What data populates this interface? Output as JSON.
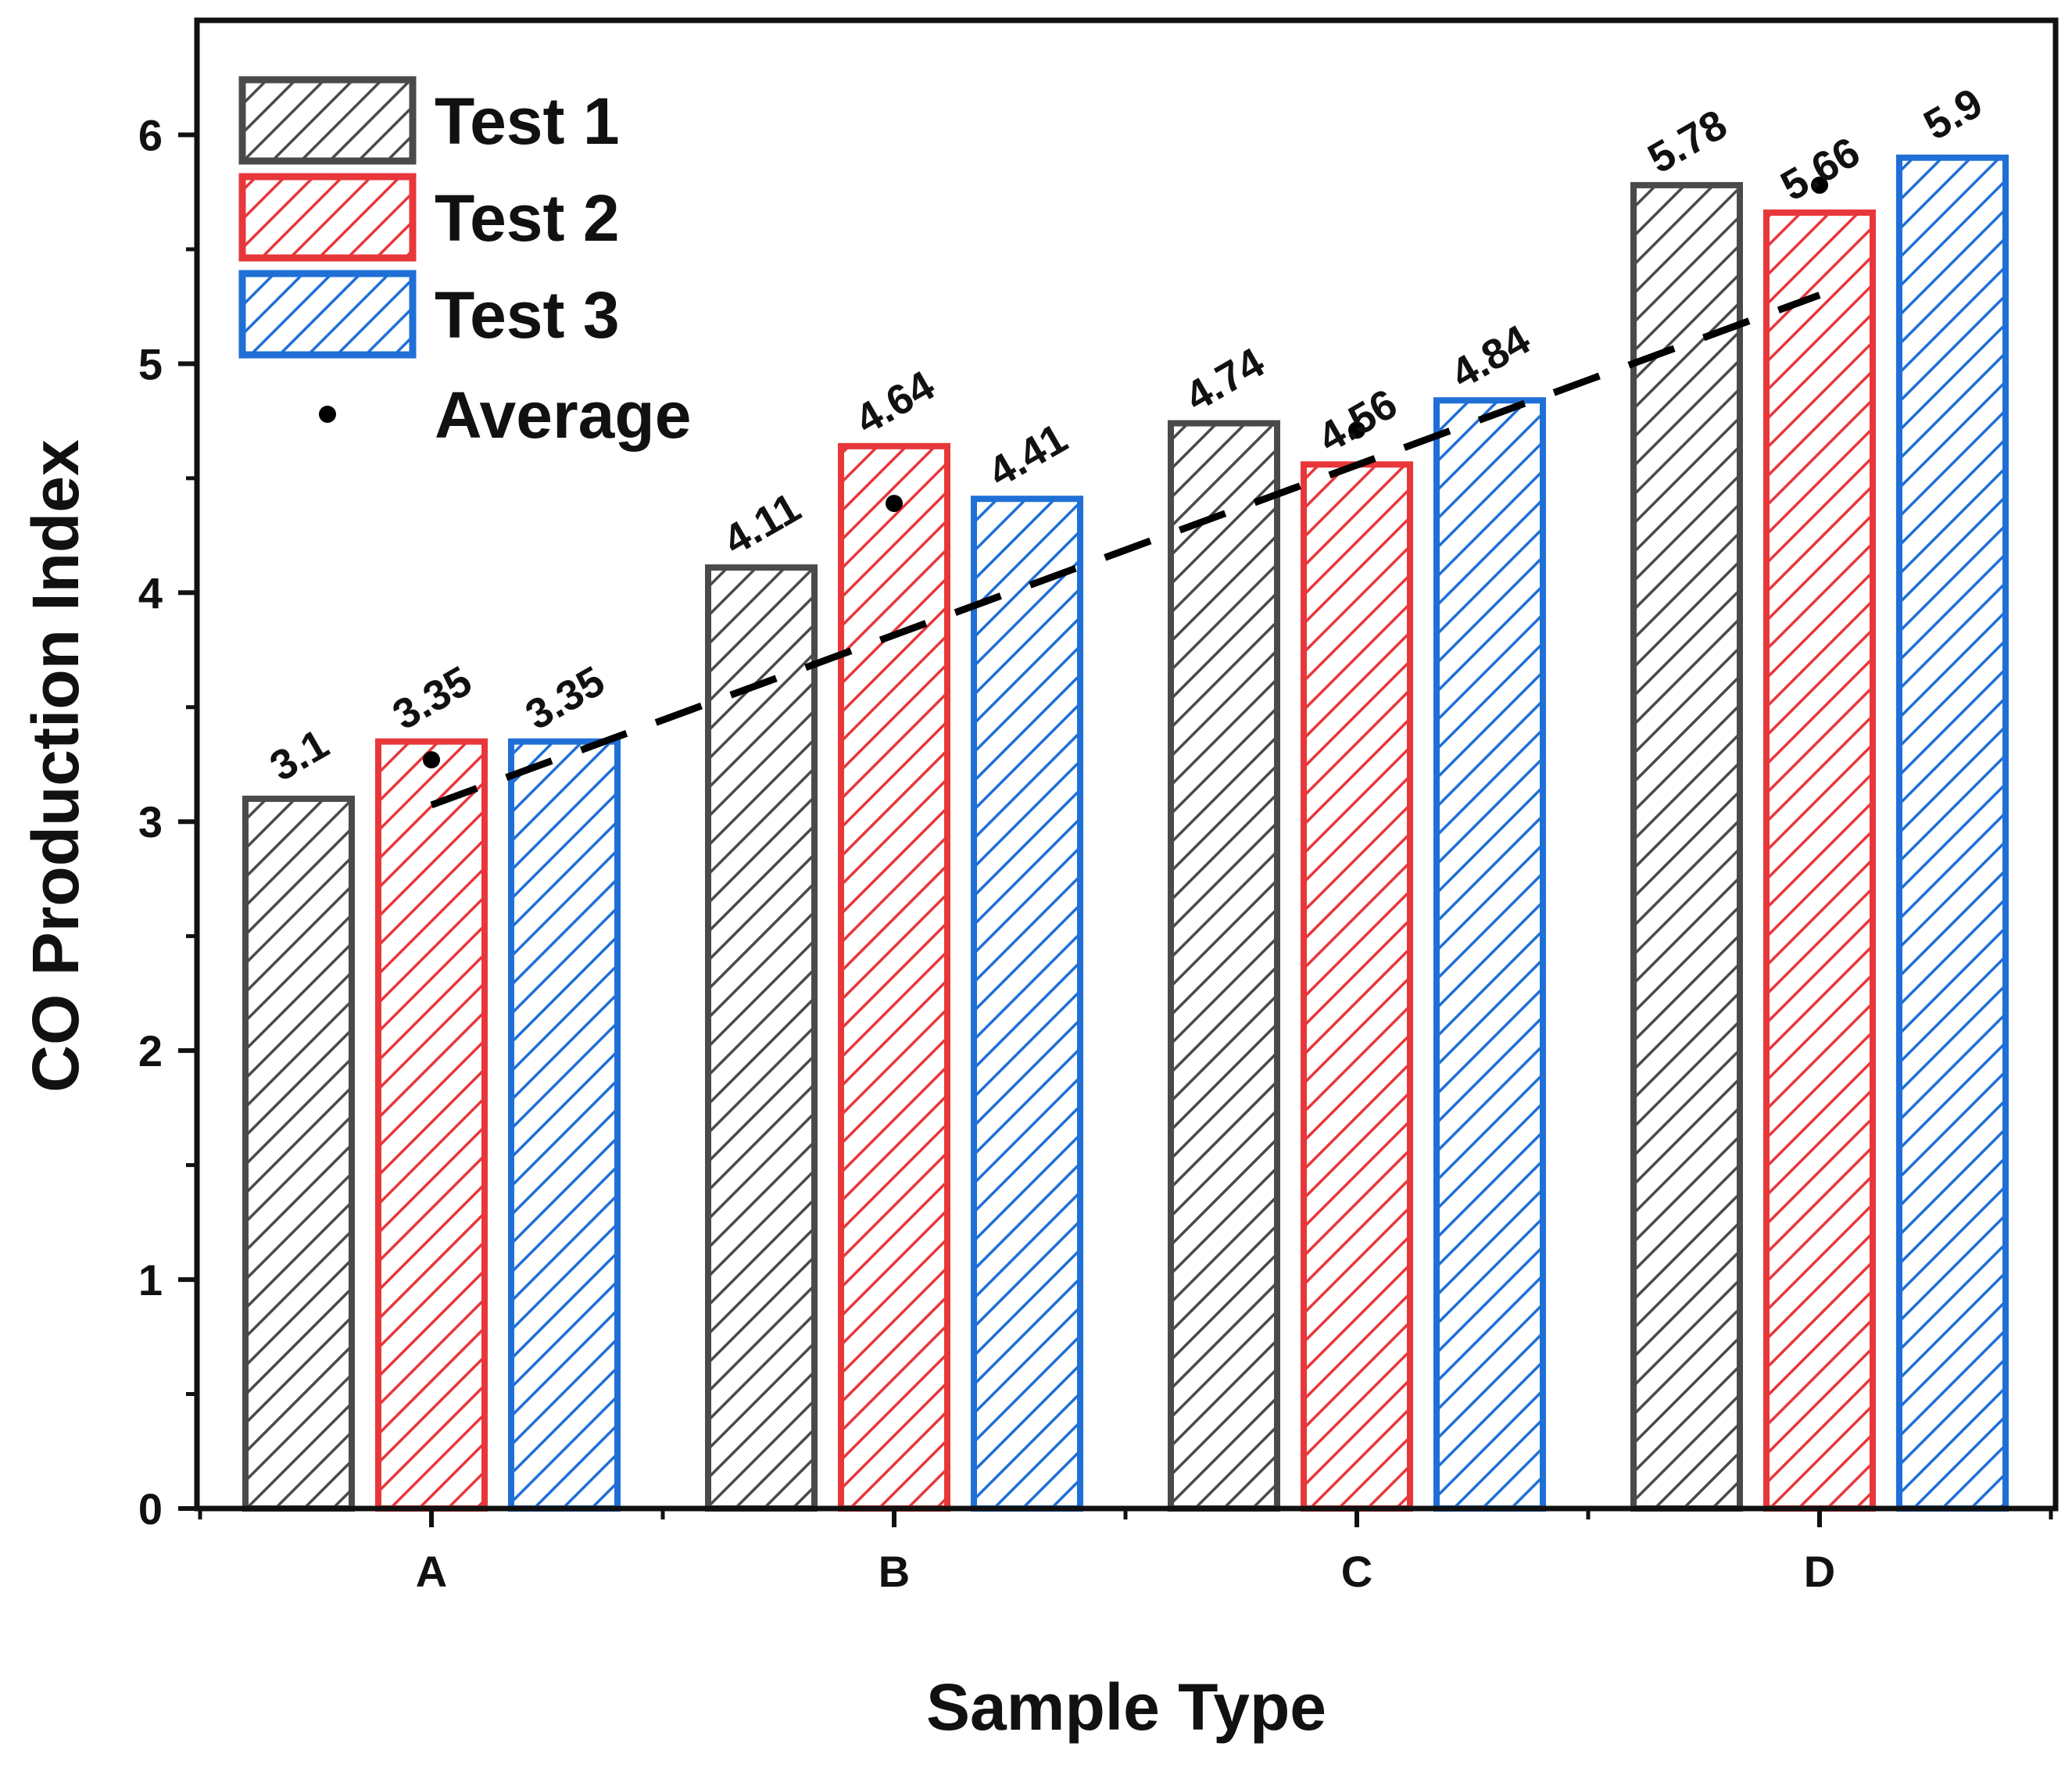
{
  "chart_data": {
    "type": "bar",
    "xlabel": "Sample Type",
    "ylabel": "CO Production Index",
    "categories": [
      "A",
      "B",
      "C",
      "D"
    ],
    "ylim": [
      0,
      6.5
    ],
    "yticks": [
      0,
      1,
      2,
      3,
      4,
      5,
      6
    ],
    "ytick_labels": [
      "0",
      "1",
      "2",
      "3",
      "4",
      "5",
      "6"
    ],
    "series": [
      {
        "name": "Test 1",
        "color": "#4a4a4a",
        "values": [
          3.1,
          4.11,
          4.74,
          5.78
        ],
        "labels": [
          "3.1",
          "4.11",
          "4.74",
          "5.78"
        ]
      },
      {
        "name": "Test 2",
        "color": "#e8373a",
        "values": [
          3.35,
          4.64,
          4.56,
          5.66
        ],
        "labels": [
          "3.35",
          "4.64",
          "4.56",
          "5.66"
        ]
      },
      {
        "name": "Test 3",
        "color": "#1f6fd6",
        "values": [
          3.35,
          4.41,
          4.84,
          5.9
        ],
        "labels": [
          "3.35",
          "4.41",
          "4.84",
          "5.9"
        ]
      }
    ],
    "average": {
      "name": "Average",
      "values": [
        3.27,
        4.39,
        4.71,
        5.78
      ]
    },
    "trendline": {
      "style": "dashed",
      "color": "#000000",
      "start": 3.1,
      "end": 5.3
    },
    "legend": "top-left",
    "bar_fill": "hatched"
  }
}
